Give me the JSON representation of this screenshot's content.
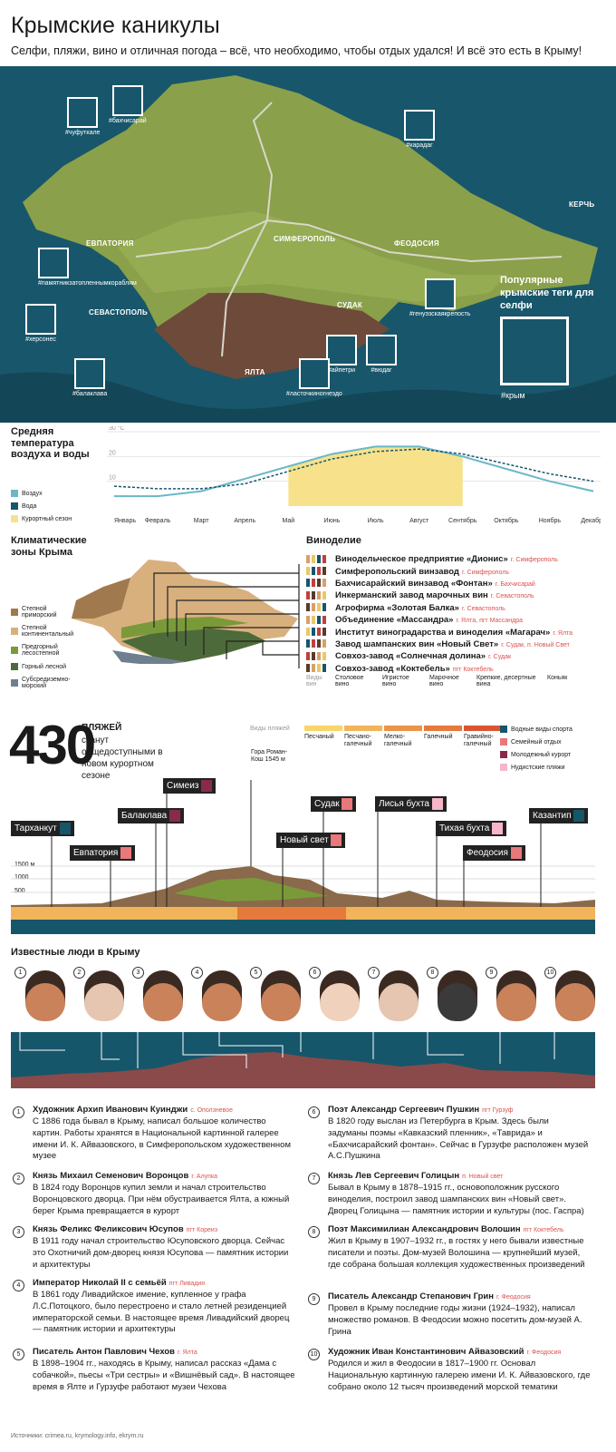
{
  "header": {
    "title": "Крымские каникулы",
    "subtitle": "Селфи, пляжи, вино и отличная погода – всё, что необходимо, чтобы отдых удался! И всё это есть в Крыму!"
  },
  "map": {
    "cities": [
      "ЕВПАТОРИЯ",
      "СИМФЕРОПОЛЬ",
      "ФЕОДОСИЯ",
      "КЕРЧЬ",
      "СЕВАСТОПОЛЬ",
      "СУДАК",
      "ЯЛТА"
    ],
    "tags": [
      "#чуфуткале",
      "#бахчисарай",
      "#карадаг",
      "#памятникзатопленнымкораблям",
      "#херсонес",
      "#генуэзскаякрепость",
      "#балаклава",
      "#айпетри",
      "#вюдаг",
      "#ласточкиногнездо"
    ],
    "popular_title": "Популярные крымские теги для селфи",
    "popular_tag": "#крым",
    "colors": {
      "sea": "#18566b",
      "land": "#8aa04a",
      "mountain": "#6e4a3a"
    }
  },
  "temperature": {
    "title": "Средняя температура воздуха и воды",
    "legend": [
      "Воздух",
      "Вода",
      "Курортный сезон"
    ],
    "chart_data": {
      "type": "line",
      "categories": [
        "Январь",
        "Февраль",
        "Март",
        "Апрель",
        "Май",
        "Июнь",
        "Июль",
        "Август",
        "Сентябрь",
        "Октябрь",
        "Ноябрь",
        "Декабрь"
      ],
      "series": [
        {
          "name": "Воздух",
          "values": [
            4,
            4,
            6,
            11,
            16,
            21,
            24,
            24,
            20,
            15,
            10,
            6
          ]
        },
        {
          "name": "Вода",
          "values": [
            8,
            7,
            7,
            9,
            14,
            19,
            22,
            23,
            21,
            17,
            13,
            10
          ]
        }
      ],
      "yticks": [
        "30 °C",
        "20",
        "10"
      ],
      "ylim": [
        0,
        30
      ],
      "season_months": [
        "Май",
        "Июнь",
        "Июль",
        "Август",
        "Сентябрь"
      ],
      "colors": {
        "air": "#6bb7c9",
        "water": "#16566b",
        "season": "#f7e28b"
      }
    }
  },
  "climate": {
    "title": "Климатические зоны Крыма",
    "zones": [
      {
        "label": "Степной приморский",
        "color": "#a07a4e"
      },
      {
        "label": "Степной континентальный",
        "color": "#d8b07e"
      },
      {
        "label": "Предгорный лесостепной",
        "color": "#7a9a3a"
      },
      {
        "label": "Горный лесной",
        "color": "#4d6b3a"
      },
      {
        "label": "Субсредиземно-морский",
        "color": "#6f7f8f"
      }
    ]
  },
  "wine": {
    "title": "Виноделие",
    "items": [
      {
        "name": "Винодельческое предприятие «Дионис»",
        "loc": "г. Симферополь"
      },
      {
        "name": "Симферопольский винзавод",
        "loc": "г. Симферополь"
      },
      {
        "name": "Бахчисарайский винзавод «Фонтан»",
        "loc": "г. Бахчисарай"
      },
      {
        "name": "Инкерманский завод марочных вин",
        "loc": "г. Севастополь"
      },
      {
        "name": "Агрофирма «Золотая Балка»",
        "loc": "г. Севастополь"
      },
      {
        "name": "Объединение «Массандра»",
        "loc": "г. Ялта, пгт Массандра"
      },
      {
        "name": "Институт виноградарства и виноделия «Магарач»",
        "loc": "г. Ялта"
      },
      {
        "name": "Завод шампанских вин «Новый Свет»",
        "loc": "г. Судак, п. Новый Свет"
      },
      {
        "name": "Совхоз-завод «Солнечная долина»",
        "loc": "г. Судак"
      },
      {
        "name": "Совхоз-завод «Коктебель»",
        "loc": "пгт Коктебель"
      }
    ],
    "legend": [
      "Виды вин",
      "Столовое вино",
      "Игристое вино",
      "Марочное вино",
      "Крепкие, десертные вина",
      "Коньяк"
    ]
  },
  "beaches": {
    "count": "430",
    "label": "ПЛЯЖЕЙ",
    "text": "станут общедоступными в новом курортном сезоне",
    "types_title": "Виды пляжей",
    "types": [
      {
        "label": "Песчаный",
        "color": "#f7d56a"
      },
      {
        "label": "Песчано-галечный",
        "color": "#f2b45a"
      },
      {
        "label": "Мелко-галечный",
        "color": "#eb9447"
      },
      {
        "label": "Галечный",
        "color": "#e6793c"
      },
      {
        "label": "Гравийно-галечный",
        "color": "#d95532"
      }
    ],
    "features": [
      {
        "label": "Водные виды спорта",
        "color": "#16566b"
      },
      {
        "label": "Семейный отдых",
        "color": "#e8787a"
      },
      {
        "label": "Молодежный курорт",
        "color": "#8a2a4a"
      },
      {
        "label": "Нудистские пляжи",
        "color": "#f7b6c8"
      }
    ],
    "peak": "Гора Роман-Кош 1545 м",
    "heights": [
      "1500 м",
      "1000",
      "500"
    ],
    "places": [
      {
        "name": "Тарханкут",
        "color": "#16566b"
      },
      {
        "name": "Евпатория",
        "color": "#e8787a"
      },
      {
        "name": "Балаклава",
        "color": "#8a2a4a"
      },
      {
        "name": "Симеиз",
        "color": "#8a2a4a"
      },
      {
        "name": "Новый свет",
        "color": "#e8787a"
      },
      {
        "name": "Судак",
        "color": "#e8787a"
      },
      {
        "name": "Лисья бухта",
        "color": "#f7b6c8"
      },
      {
        "name": "Тихая бухта",
        "color": "#f7b6c8"
      },
      {
        "name": "Феодосия",
        "color": "#e8787a"
      },
      {
        "name": "Казантип",
        "color": "#16566b"
      }
    ]
  },
  "people": {
    "title": "Известные люди в Крыму",
    "list": [
      {
        "n": "1",
        "name": "Художник Архип Иванович Куинджи",
        "loc": "с. Оползневое",
        "text": "С 1886 года бывал в Крыму, написал большое количество картин. Работы хранятся в Национальной картинной галерее имени И. К. Айвазовского, в Симферопольском художественном музее"
      },
      {
        "n": "2",
        "name": "Князь Михаил Семенович Воронцов",
        "loc": "г. Алупка",
        "text": "В 1824 году Воронцов купил земли и начал строительство Воронцовского дворца. При нём обустраивается Ялта, а южный берег Крыма превращается в курорт"
      },
      {
        "n": "3",
        "name": "Князь Феликс Феликсович Юсупов",
        "loc": "пгт Кореиз",
        "text": "В 1911 году начал строительство Юсуповского дворца. Сейчас это Охотничий дом-дворец князя Юсупова — памятник истории и архитектуры"
      },
      {
        "n": "4",
        "name": "Император Николай II с семьёй",
        "loc": "пгт Ливадия",
        "text": "В 1861 году Ливадийское имение, купленное у графа Л.С.Потоцкого, было перестроено и стало летней резиденцией императорской семьи. В настоящее время Ливадийский дворец — памятник истории и архитектуры"
      },
      {
        "n": "5",
        "name": "Писатель Антон Павлович Чехов",
        "loc": "г. Ялта",
        "text": "В 1898–1904 гг., находясь в Крыму, написал рассказ «Дама с собачкой», пьесы «Три сестры» и «Вишнёвый сад». В настоящее время в Ялте и Гурзуфе работают музеи Чехова"
      },
      {
        "n": "6",
        "name": "Поэт Александр Сергеевич Пушкин",
        "loc": "пгт Гурзуф",
        "text": "В 1820 году выслан из Петербурга в Крым. Здесь были задуманы поэмы «Кавказский пленник», «Таврида» и «Бахчисарайский фонтан». Сейчас в Гурзуфе расположен музей А.С.Пушкина"
      },
      {
        "n": "7",
        "name": "Князь Лев Сергеевич Голицын",
        "loc": "п. Новый свет",
        "text": "Бывал в Крыму в 1878–1915 гг., основоположник русского виноделия, построил завод шампанских вин «Новый свет». Дворец Голицына — памятник истории и культуры (пос. Гаспра)"
      },
      {
        "n": "8",
        "name": "Поэт Максимилиан Александрович Волошин",
        "loc": "пгт Коктебель",
        "text": "Жил в Крыму в 1907–1932 гг., в гостях у него бывали известные писатели и поэты. Дом-музей Волошина — крупнейший музей, где собрана большая коллекция художественных произведений"
      },
      {
        "n": "9",
        "name": "Писатель Александр Степанович Грин",
        "loc": "г. Феодосия",
        "text": "Провел в Крыму последние годы жизни (1924–1932), написал множество романов. В Феодосии можно посетить дом-музей А. Грина"
      },
      {
        "n": "10",
        "name": "Художник Иван Константинович Айвазовский",
        "loc": "г. Феодосия",
        "text": "Родился и жил в Феодосии в 1817–1900 гг. Основал Национальную картинную галерею имени И. К. Айвазовского, где собрано около 12 тысяч произведений морской тематики"
      }
    ]
  },
  "footer": {
    "sources": "Источники: crimea.ru, krymology.info, ekrym.ru"
  }
}
